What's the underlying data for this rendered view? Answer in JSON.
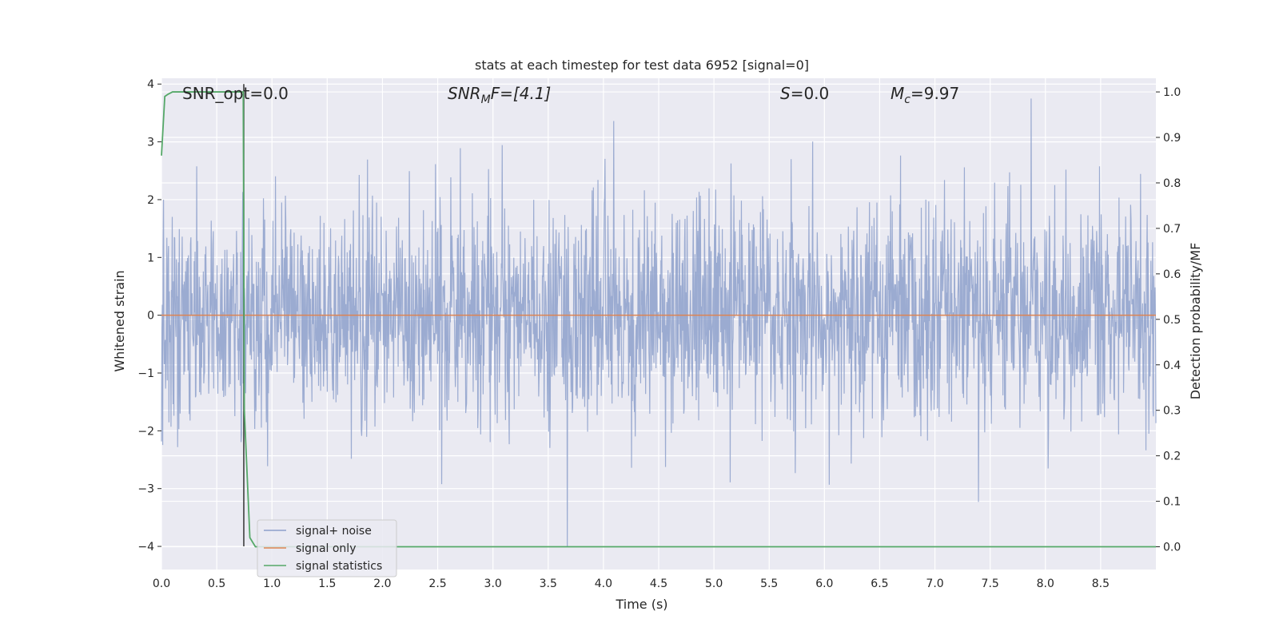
{
  "chart_data": {
    "type": "line",
    "title": "stats at each timestep for test data 6952 [signal=0]",
    "xlabel": "Time (s)",
    "ylabel_left": "Whitened strain",
    "ylabel_right": "Detection probability/MF",
    "xlim": [
      0.0,
      9.0
    ],
    "ylim_left": [
      -4.4,
      4.1
    ],
    "ylim_right": [
      -0.05,
      1.03
    ],
    "xticks": [
      0.0,
      0.5,
      1.0,
      1.5,
      2.0,
      2.5,
      3.0,
      3.5,
      4.0,
      4.5,
      5.0,
      5.5,
      6.0,
      6.5,
      7.0,
      7.5,
      8.0,
      8.5
    ],
    "xtick_labels": [
      "0.0",
      "0.5",
      "1.0",
      "1.5",
      "2.0",
      "2.5",
      "3.0",
      "3.5",
      "4.0",
      "4.5",
      "5.0",
      "5.5",
      "6.0",
      "6.5",
      "7.0",
      "7.5",
      "8.0",
      "8.5"
    ],
    "yticks_left": [
      -4,
      -3,
      -2,
      -1,
      0,
      1,
      2,
      3,
      4
    ],
    "ytick_labels_left": [
      "−4",
      "−3",
      "−2",
      "−1",
      "0",
      "1",
      "2",
      "3",
      "4"
    ],
    "yticks_right": [
      0.0,
      0.1,
      0.2,
      0.3,
      0.4,
      0.5,
      0.6,
      0.7,
      0.8,
      0.9,
      1.0
    ],
    "ytick_labels_right": [
      "0.0",
      "0.1",
      "0.2",
      "0.3",
      "0.4",
      "0.5",
      "0.6",
      "0.7",
      "0.8",
      "0.9",
      "1.0"
    ],
    "grid": true,
    "legend_position": "lower-left",
    "annotations": {
      "snr_opt": "SNR_opt=0.0",
      "snr_mf_prefix": "SNR",
      "snr_mf_sub": "M",
      "snr_mf_suffix": "F=[4.1]",
      "s_prefix": "S",
      "s_suffix": "=0.0",
      "mc_prefix": "M",
      "mc_sub": "c",
      "mc_suffix": "=9.97"
    },
    "series": [
      {
        "name": "signal+ noise",
        "axis": "left",
        "color": "#8da0cb",
        "envelope_summary": {
          "typical_range": [
            -2.0,
            2.2
          ],
          "max": 3.75,
          "min": -4.0
        }
      },
      {
        "name": "signal only",
        "axis": "left",
        "color": "#dd8452",
        "x": [
          0.0,
          9.0
        ],
        "y": [
          0.0,
          0.0
        ]
      },
      {
        "name": "signal statistics",
        "axis": "right",
        "color": "#55a868",
        "x": [
          0.0,
          0.03,
          0.06,
          0.1,
          0.74,
          0.75,
          0.8,
          0.85,
          0.9,
          9.0
        ],
        "y": [
          0.86,
          0.99,
          0.995,
          1.0,
          1.0,
          0.3,
          0.02,
          0.0,
          0.0,
          0.0
        ]
      }
    ],
    "marker_line": {
      "x": 0.745,
      "y_from": -4.0,
      "y_to": 4.0,
      "color": "#333333"
    }
  }
}
